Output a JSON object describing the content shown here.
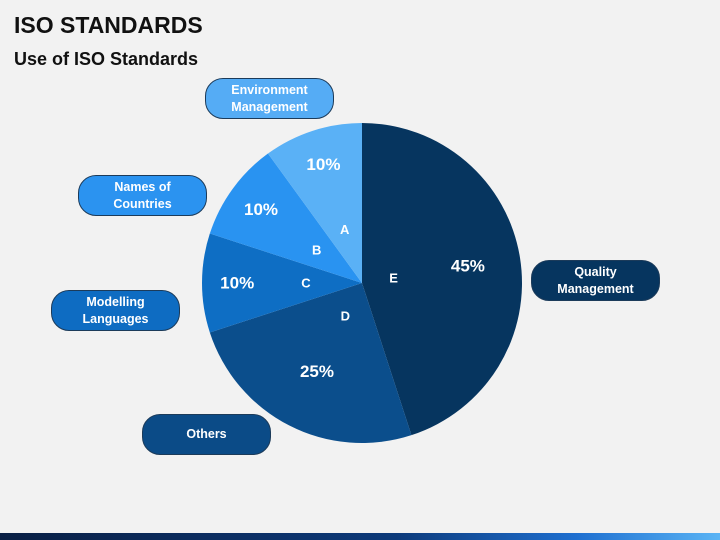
{
  "page": {
    "title": "ISO STANDARDS",
    "subtitle": "Use of ISO Standards"
  },
  "chart_data": {
    "type": "pie",
    "title": "",
    "start_angle_deg": 0,
    "direction": "clockwise",
    "slices": [
      {
        "letter": "E",
        "value": 45,
        "value_label": "45%",
        "label": "Quality Management",
        "color": "#06355f"
      },
      {
        "letter": "D",
        "value": 25,
        "value_label": "25%",
        "label": "Others",
        "color": "#0b4e8c"
      },
      {
        "letter": "C",
        "value": 10,
        "value_label": "10%",
        "label": "Modelling Languages",
        "color": "#0e6ec4"
      },
      {
        "letter": "B",
        "value": 10,
        "value_label": "10%",
        "label": "Names of Countries",
        "color": "#2993f1"
      },
      {
        "letter": "A",
        "value": 10,
        "value_label": "10%",
        "label": "Environment Management",
        "color": "#5ab1f6"
      }
    ]
  },
  "callouts": {
    "a": {
      "label": "Environment Management",
      "color": "#55acf5"
    },
    "b": {
      "label": "Names of Countries",
      "color": "#2b93f0"
    },
    "c": {
      "label": "Modelling Languages",
      "color": "#0e6cc2"
    },
    "d": {
      "label": "Others",
      "color": "#0b4b87"
    },
    "e": {
      "label": "Quality Management",
      "color": "#06355f"
    }
  }
}
